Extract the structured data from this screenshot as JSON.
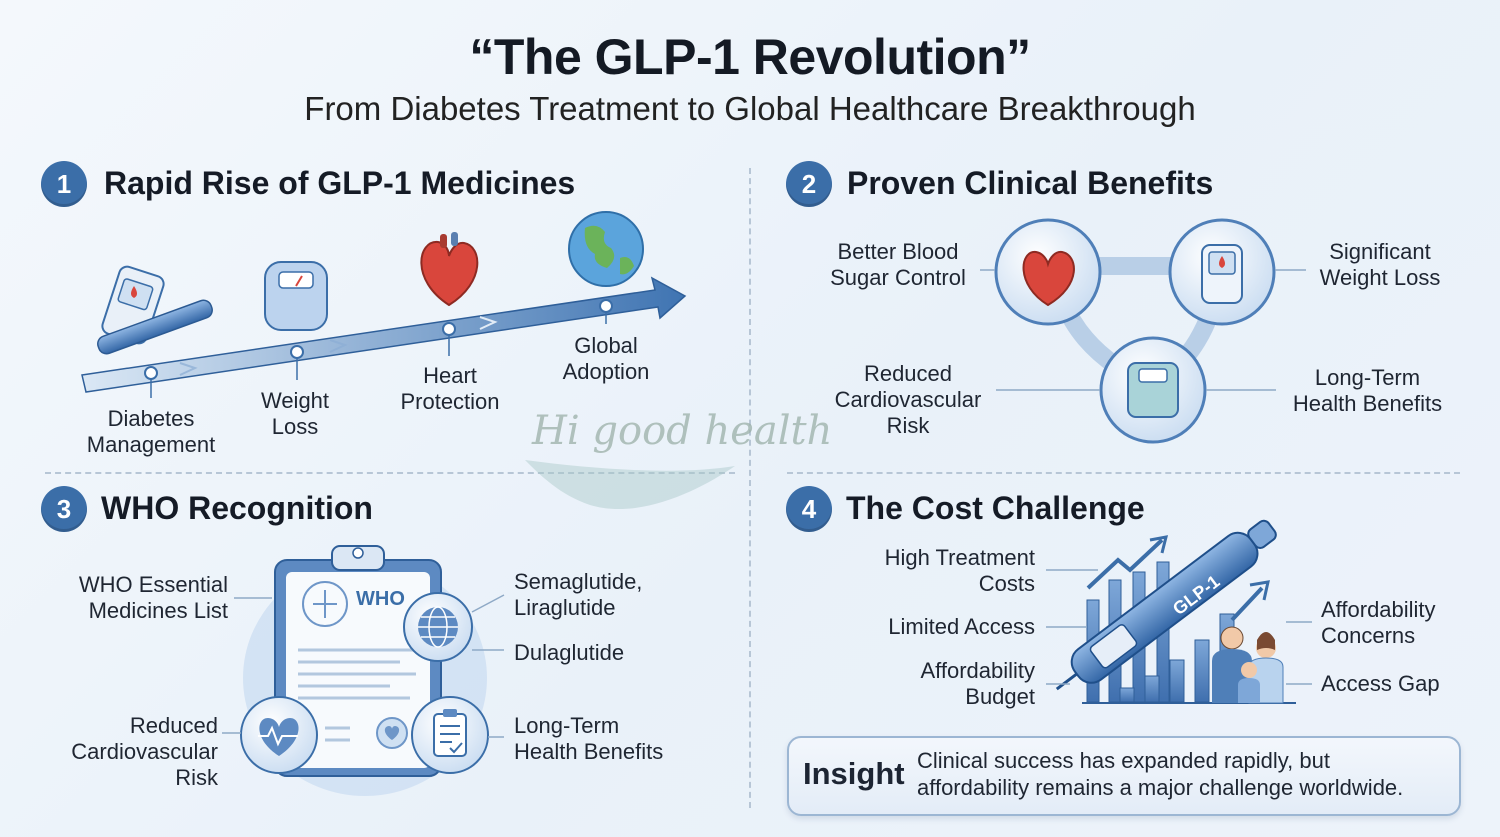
{
  "header": {
    "title": "“The GLP-1 Revolution”",
    "subtitle": "From Diabetes Treatment to Global Healthcare Breakthrough"
  },
  "sections": [
    {
      "number": "1",
      "title": "Rapid Rise of GLP-1 Medicines",
      "milestones": [
        "Diabetes\nManagement",
        "Weight\nLoss",
        "Heart\nProtection",
        "Global\nAdoption"
      ]
    },
    {
      "number": "2",
      "title": "Proven Clinical Benefits",
      "labels": {
        "top_left": "Better Blood\nSugar Control",
        "top_right": "Significant\nWeight Loss",
        "bottom_left": "Reduced\nCardiovascular\nRisk",
        "bottom_right": "Long-Term\nHealth Benefits"
      }
    },
    {
      "number": "3",
      "title": "WHO Recognition",
      "labels": {
        "essential_list": "WHO Essential\nMedicines List",
        "drugs_1": "Semaglutide,\nLiraglutide",
        "drugs_2": "Dulaglutide",
        "cv_risk": "Reduced\nCardiovascular\nRisk",
        "long_term": "Long-Term\nHealth Benefits"
      },
      "clipboard_text": "WHO"
    },
    {
      "number": "4",
      "title": "The Cost Challenge",
      "labels": {
        "high_costs": "High Treatment\nCosts",
        "limited_access": "Limited Access",
        "budget": "Affordability\nBudget",
        "concerns": "Affordability\nConcerns",
        "access_gap": "Access Gap"
      },
      "pen_label": "GLP-1"
    }
  ],
  "watermark": "Hi good health",
  "insight": {
    "title": "Insight",
    "text": "Clinical success has expanded rapidly, but\naffordability remains a major challenge worldwide."
  },
  "colors": {
    "accent": "#3b6ea8",
    "light_blue": "#cfe0f2",
    "heart_red": "#d9463c"
  }
}
